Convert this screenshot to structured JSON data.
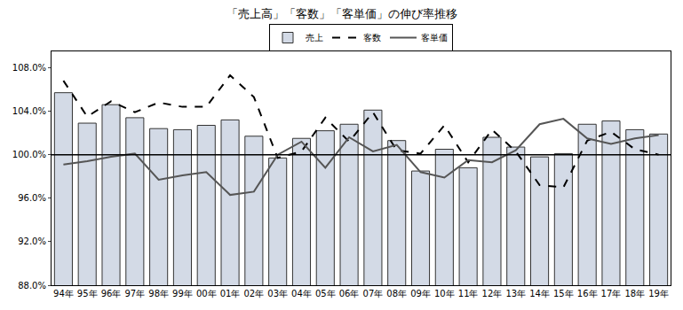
{
  "chart_data": {
    "type": "bar",
    "title": "「売上高」「客数」「客単価」の伸び率推移",
    "categories": [
      "94年",
      "95年",
      "96年",
      "97年",
      "98年",
      "99年",
      "00年",
      "01年",
      "02年",
      "03年",
      "04年",
      "05年",
      "06年",
      "07年",
      "08年",
      "09年",
      "10年",
      "11年",
      "12年",
      "13年",
      "14年",
      "15年",
      "16年",
      "17年",
      "18年",
      "19年"
    ],
    "series": [
      {
        "name": "売上",
        "type": "bar",
        "color": "#d3dae6",
        "values": [
          105.7,
          102.9,
          104.6,
          103.4,
          102.4,
          102.3,
          102.7,
          103.2,
          101.7,
          99.7,
          101.5,
          102.2,
          102.8,
          104.1,
          101.3,
          98.5,
          100.5,
          98.8,
          101.6,
          100.7,
          99.8,
          100.1,
          102.8,
          103.1,
          102.3,
          101.9
        ]
      },
      {
        "name": "客数",
        "type": "line",
        "color": "#000000",
        "line_style": "dashed",
        "marker": "none",
        "values": [
          106.8,
          103.5,
          104.9,
          103.9,
          104.8,
          104.4,
          104.4,
          107.3,
          105.3,
          99.7,
          100.3,
          103.4,
          101.2,
          103.9,
          100.4,
          100.1,
          102.7,
          99.3,
          102.3,
          100.3,
          97.2,
          97.0,
          101.3,
          102.1,
          100.5,
          100.0
        ]
      },
      {
        "name": "客単価",
        "type": "line",
        "color": "#555555",
        "line_style": "solid",
        "marker": "none",
        "values": [
          99.1,
          99.4,
          99.8,
          100.1,
          97.7,
          98.1,
          98.4,
          96.3,
          96.6,
          100.0,
          101.2,
          98.8,
          101.6,
          100.3,
          100.9,
          98.4,
          97.9,
          99.5,
          99.3,
          100.4,
          102.8,
          103.3,
          101.5,
          101.0,
          101.5,
          101.8
        ]
      }
    ],
    "ylim": [
      88,
      109.5
    ],
    "yticks": [
      {
        "value": 88,
        "label": "88.0%"
      },
      {
        "value": 92,
        "label": "92.0%"
      },
      {
        "value": 96,
        "label": "96.0%"
      },
      {
        "value": 100,
        "label": "100.0%"
      },
      {
        "value": 104,
        "label": "104.0%"
      },
      {
        "value": 108,
        "label": "108.0%"
      }
    ],
    "reference_line": 100,
    "grid": false,
    "legend": "top"
  }
}
